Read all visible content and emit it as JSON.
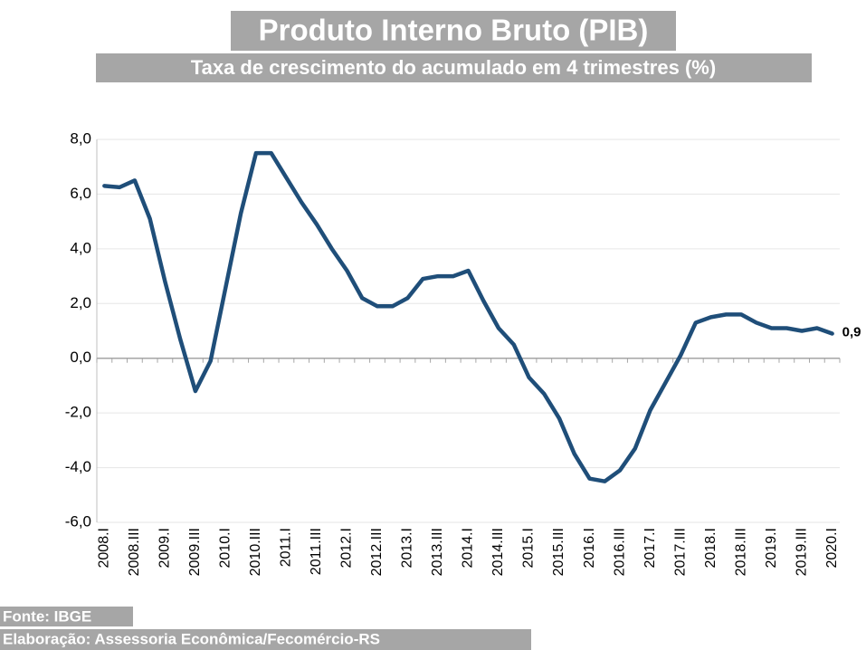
{
  "chart_data": {
    "type": "line",
    "title": "Produto Interno Bruto (PIB)",
    "subtitle": "Taxa de crescimento do acumulado em 4 trimestres (%)",
    "source": "Fonte: IBGE",
    "credit": "Elaboração: Assessoria Econômica/Fecomércio-RS",
    "categories": [
      "2008.I",
      null,
      "2008.III",
      null,
      "2009.I",
      null,
      "2009.III",
      null,
      "2010.I",
      null,
      "2010.III",
      null,
      "2011.I",
      null,
      "2011.III",
      null,
      "2012.I",
      null,
      "2012.III",
      null,
      "2013.I",
      null,
      "2013.III",
      null,
      "2014.I",
      null,
      "2014.III",
      null,
      "2015.I",
      null,
      "2015.III",
      null,
      "2016.I",
      null,
      "2016.III",
      null,
      "2017.I",
      null,
      "2017.III",
      null,
      "2018.I",
      null,
      "2018.III",
      null,
      "2019.I",
      null,
      "2019.III",
      null,
      "2020.I"
    ],
    "series": [
      {
        "color": "#1f4e79",
        "values": [
          6.3,
          6.25,
          6.5,
          5.1,
          2.8,
          0.7,
          -1.2,
          -0.1,
          2.6,
          5.3,
          7.5,
          7.5,
          6.6,
          5.7,
          4.9,
          4.0,
          3.2,
          2.2,
          1.9,
          1.9,
          2.2,
          2.9,
          3.0,
          3.0,
          3.2,
          2.1,
          1.1,
          0.5,
          -0.7,
          -1.3,
          -2.2,
          -3.5,
          -4.4,
          -4.5,
          -4.1,
          -3.3,
          -1.9,
          -0.9,
          0.1,
          1.3,
          1.5,
          1.6,
          1.6,
          1.3,
          1.1,
          1.1,
          1.0,
          1.1,
          0.9
        ],
        "value_labels": [
          null,
          null,
          null,
          null,
          null,
          null,
          null,
          null,
          null,
          null,
          null,
          null,
          null,
          null,
          null,
          null,
          null,
          null,
          null,
          null,
          null,
          null,
          null,
          null,
          null,
          null,
          null,
          null,
          null,
          null,
          null,
          null,
          null,
          null,
          null,
          null,
          null,
          null,
          null,
          null,
          null,
          null,
          null,
          null,
          null,
          null,
          null,
          null,
          "0,9"
        ]
      }
    ],
    "ylim": [
      -6,
      8
    ],
    "yticks": [
      {
        "value": -6,
        "label": "-6,0"
      },
      {
        "value": -4,
        "label": "-4,0"
      },
      {
        "value": -2,
        "label": "-2,0"
      },
      {
        "value": 0,
        "label": "0,0"
      },
      {
        "value": 2,
        "label": "2,0"
      },
      {
        "value": 4,
        "label": "4,0"
      },
      {
        "value": 6,
        "label": "6,0"
      },
      {
        "value": 8,
        "label": "8,0"
      }
    ],
    "grid": true
  }
}
